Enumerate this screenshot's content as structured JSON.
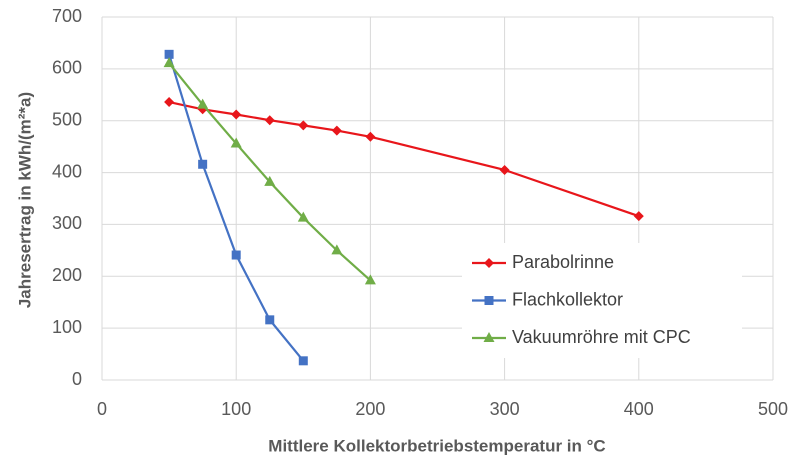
{
  "chart_data": {
    "type": "line",
    "xlabel": "Mittlere Kollektorbetriebstemperatur in °C",
    "ylabel": "Jahresertrag in kWh/(m²*a)",
    "xlim": [
      0,
      500
    ],
    "xticks": [
      0,
      100,
      200,
      300,
      400,
      500
    ],
    "ylim": [
      0,
      700
    ],
    "yticks": [
      0,
      100,
      200,
      300,
      400,
      500,
      600,
      700
    ],
    "grid": true,
    "legend": "right",
    "series": [
      {
        "name": "Parabolrinne",
        "color": "#e8161b",
        "marker": "diamond",
        "x": [
          50,
          75,
          100,
          125,
          150,
          175,
          200,
          300,
          400
        ],
        "values": [
          536,
          522,
          512,
          501,
          491,
          481,
          469,
          405,
          316
        ]
      },
      {
        "name": "Flachkollektor",
        "color": "#4472c4",
        "marker": "square",
        "x": [
          50,
          75,
          100,
          125,
          150
        ],
        "values": [
          628,
          416,
          241,
          116,
          37
        ]
      },
      {
        "name": "Vakuumröhre mit CPC",
        "color": "#70ad47",
        "marker": "triangle",
        "x": [
          50,
          75,
          100,
          125,
          150,
          175,
          200
        ],
        "values": [
          611,
          531,
          456,
          382,
          313,
          250,
          192
        ]
      }
    ]
  }
}
